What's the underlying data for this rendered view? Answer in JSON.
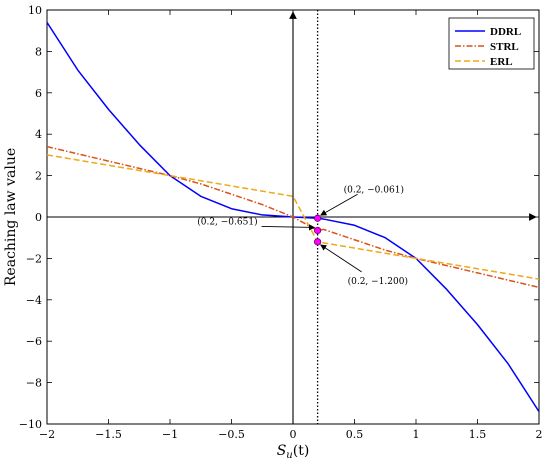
{
  "chart_data": {
    "type": "line",
    "xlabel_base": "S",
    "xlabel_sub": "u",
    "xlabel_arg": "(t)",
    "ylabel": "Reaching law value",
    "xlim": [
      -2,
      2
    ],
    "ylim": [
      -10,
      10
    ],
    "xticks": [
      -2,
      -1.5,
      -1,
      -0.5,
      0,
      0.5,
      1,
      1.5,
      2
    ],
    "yticks": [
      -10,
      -8,
      -6,
      -4,
      -2,
      0,
      2,
      4,
      6,
      8,
      10
    ],
    "xtick_labels": [
      "−2",
      "−1.5",
      "−1",
      "−0.5",
      "0",
      "0.5",
      "1",
      "1.5",
      "2"
    ],
    "ytick_labels": [
      "−10",
      "−8",
      "−6",
      "−4",
      "−2",
      "0",
      "2",
      "4",
      "6",
      "8",
      "10"
    ],
    "legend_position": "top-right",
    "series": [
      {
        "name": "DDRL",
        "color": "#0000ff",
        "style": "solid",
        "x": [
          -2,
          -1.75,
          -1.5,
          -1.25,
          -1,
          -0.75,
          -0.5,
          -0.25,
          0,
          0.2,
          0.25,
          0.5,
          0.75,
          1,
          1.25,
          1.5,
          1.75,
          2
        ],
        "y": [
          9.4,
          7.1,
          5.2,
          3.5,
          2.0,
          1.0,
          0.4,
          0.1,
          0,
          -0.061,
          -0.1,
          -0.4,
          -1.0,
          -2.0,
          -3.5,
          -5.2,
          -7.1,
          -9.4
        ]
      },
      {
        "name": "STRL",
        "color": "#d95319",
        "style": "dashdot",
        "x": [
          -2,
          -1.75,
          -1.5,
          -1.25,
          -1,
          -0.75,
          -0.5,
          -0.25,
          0,
          0.2,
          0.25,
          0.5,
          0.75,
          1,
          1.25,
          1.5,
          1.75,
          2
        ],
        "y": [
          3.4,
          3.05,
          2.7,
          2.35,
          2.0,
          1.6,
          1.1,
          0.6,
          0,
          -0.651,
          -0.6,
          -1.1,
          -1.6,
          -2.0,
          -2.35,
          -2.7,
          -3.05,
          -3.4
        ]
      },
      {
        "name": "ERL",
        "color": "#f0a81c",
        "style": "dashed",
        "x": [
          -2,
          -1,
          0,
          0.2,
          1,
          2
        ],
        "y": [
          3.0,
          2.0,
          1.0,
          -1.2,
          -2.0,
          -3.0
        ]
      }
    ],
    "vline_x": 0.2,
    "markers": [
      {
        "x": 0.2,
        "y": -0.061
      },
      {
        "x": 0.2,
        "y": -0.651
      },
      {
        "x": 0.2,
        "y": -1.2
      }
    ],
    "annotations": [
      {
        "text": "(0.2, −0.061)",
        "x": 0.2,
        "y": -0.061
      },
      {
        "text": "(0.2, −0.651)",
        "x": 0.2,
        "y": -0.651
      },
      {
        "text": "(0.2, −1.200)",
        "x": 0.2,
        "y": -1.2
      }
    ]
  }
}
